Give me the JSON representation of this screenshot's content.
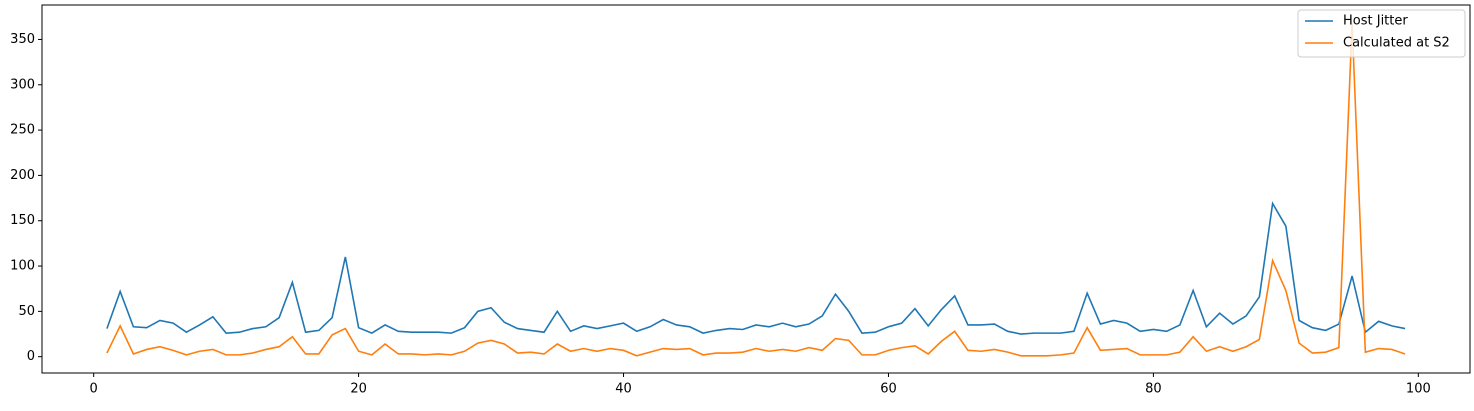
{
  "chart_data": {
    "type": "line",
    "x": [
      1,
      2,
      3,
      4,
      5,
      6,
      7,
      8,
      9,
      10,
      11,
      12,
      13,
      14,
      15,
      16,
      17,
      18,
      19,
      20,
      21,
      22,
      23,
      24,
      25,
      26,
      27,
      28,
      29,
      30,
      31,
      32,
      33,
      34,
      35,
      36,
      37,
      38,
      39,
      40,
      41,
      42,
      43,
      44,
      45,
      46,
      47,
      48,
      49,
      50,
      51,
      52,
      53,
      54,
      55,
      56,
      57,
      58,
      59,
      60,
      61,
      62,
      63,
      64,
      65,
      66,
      67,
      68,
      69,
      70,
      71,
      72,
      73,
      74,
      75,
      76,
      77,
      78,
      79,
      80,
      81,
      82,
      83,
      84,
      85,
      86,
      87,
      88,
      89,
      90,
      91,
      92,
      93,
      94,
      95,
      96,
      97,
      98,
      99
    ],
    "series": [
      {
        "name": "Host Jitter",
        "color": "#1f77b4",
        "values": [
          31,
          72,
          33,
          32,
          40,
          37,
          27,
          35,
          44,
          26,
          27,
          31,
          33,
          43,
          82,
          27,
          29,
          43,
          110,
          32,
          26,
          35,
          28,
          27,
          27,
          27,
          26,
          32,
          50,
          54,
          38,
          31,
          29,
          27,
          50,
          28,
          34,
          31,
          34,
          37,
          28,
          33,
          41,
          35,
          33,
          26,
          29,
          31,
          30,
          35,
          33,
          37,
          33,
          36,
          45,
          69,
          50,
          26,
          27,
          33,
          37,
          53,
          34,
          52,
          67,
          35,
          35,
          36,
          28,
          25,
          26,
          26,
          26,
          28,
          70,
          36,
          40,
          37,
          28,
          30,
          28,
          35,
          73,
          33,
          48,
          36,
          45,
          66,
          169,
          144,
          40,
          32,
          29,
          36,
          89,
          27,
          39,
          34,
          31
        ]
      },
      {
        "name": "Calculated at S2",
        "color": "#ff7f0e",
        "values": [
          4,
          34,
          3,
          8,
          11,
          7,
          2,
          6,
          8,
          2,
          2,
          4,
          8,
          11,
          22,
          3,
          3,
          24,
          31,
          6,
          2,
          14,
          3,
          3,
          2,
          3,
          2,
          6,
          15,
          18,
          14,
          4,
          5,
          3,
          14,
          6,
          9,
          6,
          9,
          7,
          1,
          5,
          9,
          8,
          9,
          2,
          4,
          4,
          5,
          9,
          6,
          8,
          6,
          10,
          7,
          20,
          18,
          2,
          2,
          7,
          10,
          12,
          3,
          17,
          28,
          7,
          6,
          8,
          5,
          1,
          1,
          1,
          2,
          4,
          32,
          7,
          8,
          9,
          2,
          2,
          2,
          5,
          22,
          6,
          11,
          6,
          11,
          19,
          106,
          73,
          15,
          4,
          5,
          10,
          368,
          5,
          9,
          8,
          3
        ]
      }
    ],
    "xlim": [
      -3.9,
      103.9
    ],
    "ylim": [
      -18,
      388
    ],
    "xticks": [
      0,
      20,
      40,
      60,
      80,
      100
    ],
    "yticks": [
      0,
      50,
      100,
      150,
      200,
      250,
      300,
      350
    ],
    "grid": false,
    "legend": "upper right"
  }
}
